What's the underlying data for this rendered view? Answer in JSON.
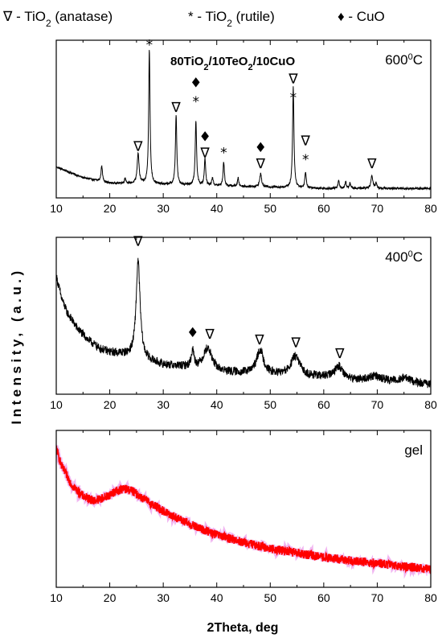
{
  "legend": [
    {
      "symbol": "∇",
      "formula": "TiO",
      "sub": "2",
      "phase": "(anatase)"
    },
    {
      "symbol": "*",
      "formula": "TiO",
      "sub": "2",
      "phase": "(rutile)"
    },
    {
      "symbol": "♦",
      "formula": "CuO",
      "sub": "",
      "phase": ""
    }
  ],
  "composition": {
    "parts": [
      "80TiO",
      "2",
      "/10TeO",
      "2",
      "/10CuO"
    ]
  },
  "axes": {
    "xlabel": "2Theta, deg",
    "ylabel": "Intensity, (a.u.)",
    "xlim": [
      10,
      80
    ],
    "xticks": [
      "10",
      "20",
      "30",
      "40",
      "50",
      "60",
      "70",
      "80"
    ]
  },
  "chart_data": [
    {
      "type": "line",
      "panel_label": {
        "value": "600",
        "sup": "0",
        "unit": "C"
      },
      "series_color": "#000000",
      "baseline": [
        [
          10,
          0.18
        ],
        [
          15,
          0.1
        ],
        [
          20,
          0.06
        ],
        [
          30,
          0.05
        ],
        [
          40,
          0.04
        ],
        [
          50,
          0.03
        ],
        [
          60,
          0.02
        ],
        [
          70,
          0.02
        ],
        [
          80,
          0.02
        ]
      ],
      "peaks": [
        {
          "x": 18.5,
          "h": 0.12,
          "w": 0.15
        },
        {
          "x": 22.9,
          "h": 0.04,
          "w": 0.15
        },
        {
          "x": 25.3,
          "h": 0.23,
          "w": 0.2
        },
        {
          "x": 27.4,
          "h": 1.0,
          "w": 0.15
        },
        {
          "x": 32.4,
          "h": 0.52,
          "w": 0.15
        },
        {
          "x": 36.1,
          "h": 0.48,
          "w": 0.15
        },
        {
          "x": 37.8,
          "h": 0.2,
          "w": 0.15
        },
        {
          "x": 39.2,
          "h": 0.06,
          "w": 0.15
        },
        {
          "x": 41.3,
          "h": 0.18,
          "w": 0.15
        },
        {
          "x": 44.0,
          "h": 0.06,
          "w": 0.15
        },
        {
          "x": 48.2,
          "h": 0.1,
          "w": 0.2
        },
        {
          "x": 54.3,
          "h": 0.75,
          "w": 0.15
        },
        {
          "x": 56.6,
          "h": 0.12,
          "w": 0.15
        },
        {
          "x": 62.8,
          "h": 0.06,
          "w": 0.15
        },
        {
          "x": 64.1,
          "h": 0.05,
          "w": 0.15
        },
        {
          "x": 64.9,
          "h": 0.04,
          "w": 0.15
        },
        {
          "x": 69.0,
          "h": 0.1,
          "w": 0.2
        },
        {
          "x": 69.8,
          "h": 0.04,
          "w": 0.15
        }
      ],
      "noise": 0.008,
      "ylim": [
        -0.05,
        1.12
      ],
      "markers": [
        {
          "x": 27.4,
          "y": 1.05,
          "symbol": "*"
        },
        {
          "x": 25.3,
          "y": 0.3,
          "symbol": "∇"
        },
        {
          "x": 32.4,
          "y": 0.59,
          "symbol": "∇"
        },
        {
          "x": 36.1,
          "y": 0.77,
          "symbol": "♦"
        },
        {
          "x": 36.1,
          "y": 0.63,
          "symbol": "*"
        },
        {
          "x": 37.8,
          "y": 0.37,
          "symbol": "♦"
        },
        {
          "x": 37.8,
          "y": 0.25,
          "symbol": "∇"
        },
        {
          "x": 41.3,
          "y": 0.25,
          "symbol": "*"
        },
        {
          "x": 48.2,
          "y": 0.29,
          "symbol": "♦"
        },
        {
          "x": 48.2,
          "y": 0.17,
          "symbol": "∇"
        },
        {
          "x": 54.3,
          "y": 0.8,
          "symbol": "∇"
        },
        {
          "x": 54.3,
          "y": 0.66,
          "symbol": "*"
        },
        {
          "x": 56.6,
          "y": 0.34,
          "symbol": "∇"
        },
        {
          "x": 56.6,
          "y": 0.2,
          "symbol": "*"
        },
        {
          "x": 69.0,
          "y": 0.17,
          "symbol": "∇"
        }
      ]
    },
    {
      "type": "line",
      "panel_label": {
        "value": "400",
        "sup": "0",
        "unit": "C"
      },
      "series_color": "#000000",
      "baseline": [
        [
          10,
          0.8
        ],
        [
          11,
          0.64
        ],
        [
          12,
          0.54
        ],
        [
          14,
          0.42
        ],
        [
          16,
          0.34
        ],
        [
          18,
          0.28
        ],
        [
          20,
          0.25
        ],
        [
          22,
          0.24
        ],
        [
          30,
          0.16
        ],
        [
          35,
          0.14
        ],
        [
          40,
          0.11
        ],
        [
          45,
          0.1
        ],
        [
          50,
          0.09
        ],
        [
          55,
          0.08
        ],
        [
          60,
          0.07
        ],
        [
          65,
          0.05
        ],
        [
          70,
          0.05
        ],
        [
          75,
          0.04
        ],
        [
          80,
          0.02
        ]
      ],
      "peaks": [
        {
          "x": 25.3,
          "h": 0.7,
          "w": 0.45
        },
        {
          "x": 35.5,
          "h": 0.12,
          "w": 0.3
        },
        {
          "x": 38.3,
          "h": 0.16,
          "w": 1.0
        },
        {
          "x": 48.1,
          "h": 0.17,
          "w": 0.8
        },
        {
          "x": 54.7,
          "h": 0.14,
          "w": 1.0
        },
        {
          "x": 62.8,
          "h": 0.09,
          "w": 1.0
        },
        {
          "x": 69.5,
          "h": 0.03,
          "w": 1.2
        },
        {
          "x": 75.2,
          "h": 0.03,
          "w": 1.0
        }
      ],
      "noise": 0.03,
      "ylim": [
        -0.05,
        1.08
      ],
      "markers": [
        {
          "x": 25.3,
          "y": 1.02,
          "symbol": "∇"
        },
        {
          "x": 35.5,
          "y": 0.36,
          "symbol": "♦"
        },
        {
          "x": 38.7,
          "y": 0.35,
          "symbol": "∇"
        },
        {
          "x": 48.0,
          "y": 0.31,
          "symbol": "∇"
        },
        {
          "x": 54.8,
          "y": 0.29,
          "symbol": "∇"
        },
        {
          "x": 63.0,
          "y": 0.21,
          "symbol": "∇"
        }
      ]
    },
    {
      "type": "line",
      "panel_label": {
        "value": "gel",
        "sup": "",
        "unit": ""
      },
      "series_color": "#ff0000",
      "baseline": [
        [
          10,
          0.88
        ],
        [
          11,
          0.76
        ],
        [
          13,
          0.63
        ],
        [
          15,
          0.56
        ],
        [
          17,
          0.53
        ],
        [
          19,
          0.55
        ],
        [
          21,
          0.59
        ],
        [
          22.5,
          0.61
        ],
        [
          24,
          0.6
        ],
        [
          26,
          0.55
        ],
        [
          30,
          0.46
        ],
        [
          35,
          0.37
        ],
        [
          40,
          0.3
        ],
        [
          45,
          0.25
        ],
        [
          50,
          0.21
        ],
        [
          55,
          0.18
        ],
        [
          60,
          0.15
        ],
        [
          65,
          0.13
        ],
        [
          70,
          0.11
        ],
        [
          75,
          0.09
        ],
        [
          80,
          0.07
        ]
      ],
      "peaks": [],
      "noise": 0.03,
      "ylim": [
        -0.05,
        1.0
      ],
      "markers": []
    }
  ]
}
